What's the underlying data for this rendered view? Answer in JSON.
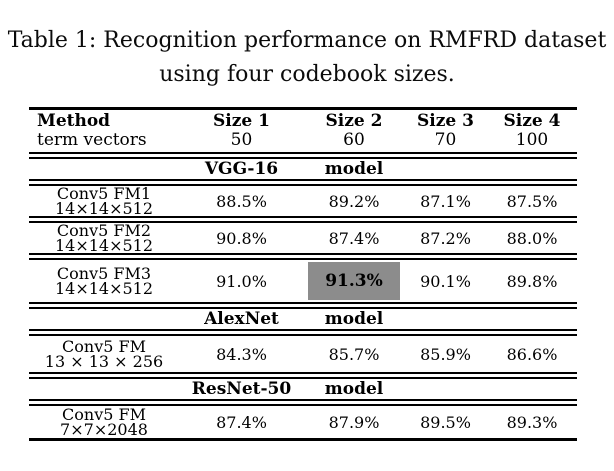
{
  "caption": {
    "line1": "Table 1: Recognition performance on RMFRD dataset",
    "line2": "using four codebook sizes."
  },
  "table": {
    "highlight_color": "#8c8c8c",
    "header": {
      "method_label": "Method",
      "method_sub": "term vectors",
      "columns": [
        {
          "label": "Size 1",
          "value": "50"
        },
        {
          "label": "Size 2",
          "value": "60"
        },
        {
          "label": "Size 3",
          "value": "70"
        },
        {
          "label": "Size 4",
          "value": "100"
        }
      ]
    },
    "sections": [
      {
        "model": "VGG-16",
        "model_word": "model",
        "rows": [
          {
            "name": "Conv5 FM1",
            "dims": "14×14×512",
            "values": [
              "88.5%",
              "89.2%",
              "87.1%",
              "87.5%"
            ]
          },
          {
            "name": "Conv5 FM2",
            "dims": "14×14×512",
            "values": [
              "90.8%",
              "87.4%",
              "87.2%",
              "88.0%"
            ]
          },
          {
            "name": "Conv5 FM3",
            "dims": "14×14×512",
            "values": [
              "91.0%",
              "91.3%",
              "90.1%",
              "89.8%"
            ],
            "highlighted_value_index": 1
          }
        ]
      },
      {
        "model": "AlexNet",
        "model_word": "model",
        "rows": [
          {
            "name": "Conv5 FM",
            "dims": "13 × 13 × 256",
            "values": [
              "84.3%",
              "85.7%",
              "85.9%",
              "86.6%"
            ]
          }
        ]
      },
      {
        "model": "ResNet-50",
        "model_word": "model",
        "rows": [
          {
            "name": "Conv5 FM",
            "dims": "7×7×2048",
            "values": [
              "87.4%",
              "87.9%",
              "89.5%",
              "89.3%"
            ]
          }
        ]
      }
    ]
  }
}
